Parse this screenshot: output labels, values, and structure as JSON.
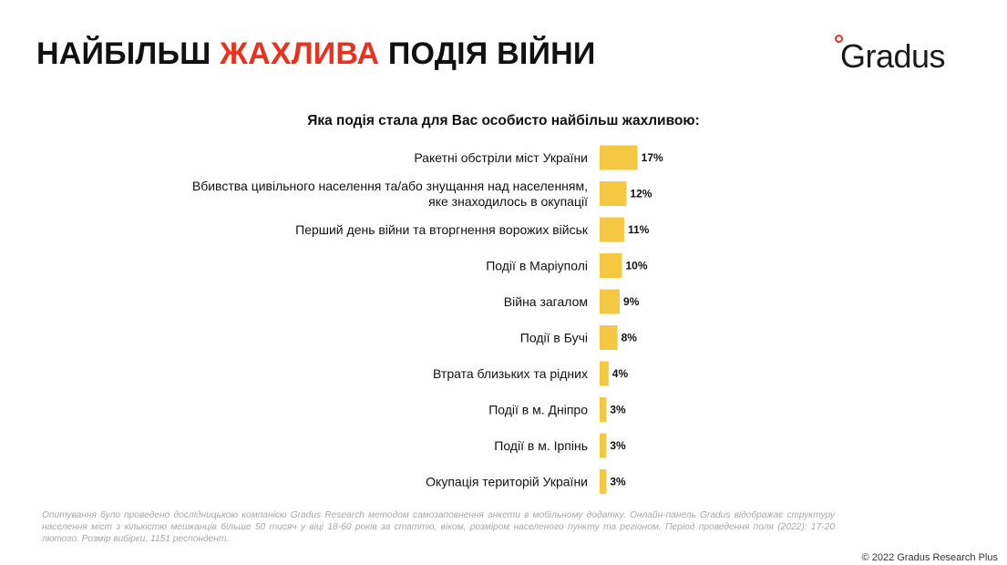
{
  "header": {
    "title_part1": "НАЙБІЛЬШ",
    "title_accent": "ЖАХЛИВА",
    "title_part2": "ПОДІЯ ВІЙНИ",
    "logo_text": "Gradus"
  },
  "colors": {
    "accent": "#e8321e",
    "bar": "#f5c842"
  },
  "chart_data": {
    "type": "bar",
    "orientation": "horizontal",
    "title": "Яка подія стала для Вас особисто найбільш жахливою:",
    "categories": [
      [
        "Ракетні обстріли міст України"
      ],
      [
        "Вбивства цивільного населення та/або знущання над населенням,",
        "яке знаходилось в окупації"
      ],
      [
        "Перший день війни та вторгнення ворожих військ"
      ],
      [
        "Події в Маріуполі"
      ],
      [
        "Війна загалом"
      ],
      [
        "Події в Бучі"
      ],
      [
        "Втрата близьких та рідних"
      ],
      [
        "Події в м. Дніпро"
      ],
      [
        "Події в м. Ірпінь"
      ],
      [
        "Окупація територій України"
      ]
    ],
    "values": [
      17,
      12,
      11,
      10,
      9,
      8,
      4,
      3,
      3,
      3
    ],
    "value_labels": [
      "17%",
      "12%",
      "11%",
      "10%",
      "9%",
      "8%",
      "4%",
      "3%",
      "3%",
      "3%"
    ],
    "unit": "%",
    "grid": false,
    "legend": false
  },
  "footer": {
    "note": "Опитування було проведено дослідницькою компанією Gradus Research методом самозаповнення анкети в мобільному додатку. Онлайн-панель Gradus відображає структуру населення міст з кількістю мешканців більше 50 тисяч у віці 18-60 років за статтю, віком, розміром населеного пункту та регіоном. Період проведення поля (2022): 17-20 лютого. Розмір вибірки: 1151 респондент.",
    "copyright": "© 2022 Gradus Research Plus"
  }
}
